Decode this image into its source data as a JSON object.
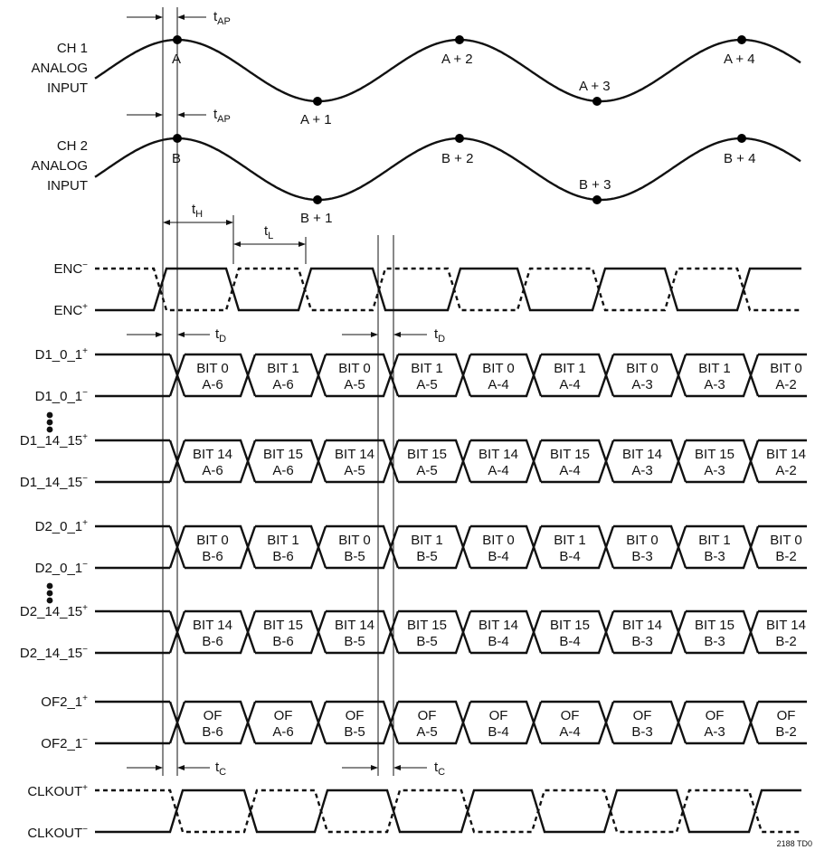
{
  "analog": [
    {
      "label_lines": [
        "CH 1",
        "ANALOG",
        "INPUT"
      ],
      "points": [
        "A",
        "A + 1",
        "A + 2",
        "A + 3",
        "A + 4"
      ],
      "timing": {
        "main": "t",
        "sub": "AP"
      }
    },
    {
      "label_lines": [
        "CH 2",
        "ANALOG",
        "INPUT"
      ],
      "points": [
        "B",
        "B + 1",
        "B + 2",
        "B + 3",
        "B + 4"
      ],
      "timing": {
        "main": "t",
        "sub": "AP"
      }
    }
  ],
  "timing": {
    "th": {
      "main": "t",
      "sub": "H"
    },
    "tl": {
      "main": "t",
      "sub": "L"
    },
    "td": {
      "main": "t",
      "sub": "D"
    },
    "tc": {
      "main": "t",
      "sub": "C"
    }
  },
  "enc": {
    "top": {
      "main": "ENC",
      "sup": "−"
    },
    "bottom": {
      "main": "ENC",
      "sup": "+"
    }
  },
  "buses": [
    {
      "top": {
        "main": "D1_0_1",
        "sup": "+"
      },
      "bottom": {
        "main": "D1_0_1",
        "sup": "−"
      },
      "cells": [
        [
          "BIT 0",
          "A-6"
        ],
        [
          "BIT 1",
          "A-6"
        ],
        [
          "BIT 0",
          "A-5"
        ],
        [
          "BIT 1",
          "A-5"
        ],
        [
          "BIT 0",
          "A-4"
        ],
        [
          "BIT 1",
          "A-4"
        ],
        [
          "BIT 0",
          "A-3"
        ],
        [
          "BIT 1",
          "A-3"
        ],
        [
          "BIT 0",
          "A-2"
        ]
      ]
    },
    {
      "top": {
        "main": "D1_14_15",
        "sup": "+"
      },
      "bottom": {
        "main": "D1_14_15",
        "sup": "−"
      },
      "cells": [
        [
          "BIT 14",
          "A-6"
        ],
        [
          "BIT 15",
          "A-6"
        ],
        [
          "BIT 14",
          "A-5"
        ],
        [
          "BIT 15",
          "A-5"
        ],
        [
          "BIT 14",
          "A-4"
        ],
        [
          "BIT 15",
          "A-4"
        ],
        [
          "BIT 14",
          "A-3"
        ],
        [
          "BIT 15",
          "A-3"
        ],
        [
          "BIT 14",
          "A-2"
        ]
      ]
    },
    {
      "top": {
        "main": "D2_0_1",
        "sup": "+"
      },
      "bottom": {
        "main": "D2_0_1",
        "sup": "−"
      },
      "cells": [
        [
          "BIT 0",
          "B-6"
        ],
        [
          "BIT 1",
          "B-6"
        ],
        [
          "BIT 0",
          "B-5"
        ],
        [
          "BIT 1",
          "B-5"
        ],
        [
          "BIT 0",
          "B-4"
        ],
        [
          "BIT 1",
          "B-4"
        ],
        [
          "BIT 0",
          "B-3"
        ],
        [
          "BIT 1",
          "B-3"
        ],
        [
          "BIT 0",
          "B-2"
        ]
      ]
    },
    {
      "top": {
        "main": "D2_14_15",
        "sup": "+"
      },
      "bottom": {
        "main": "D2_14_15",
        "sup": "−"
      },
      "cells": [
        [
          "BIT 14",
          "B-6"
        ],
        [
          "BIT 15",
          "B-6"
        ],
        [
          "BIT 14",
          "B-5"
        ],
        [
          "BIT 15",
          "B-5"
        ],
        [
          "BIT 14",
          "B-4"
        ],
        [
          "BIT 15",
          "B-4"
        ],
        [
          "BIT 14",
          "B-3"
        ],
        [
          "BIT 15",
          "B-3"
        ],
        [
          "BIT 14",
          "B-2"
        ]
      ]
    },
    {
      "top": {
        "main": "OF2_1",
        "sup": "+"
      },
      "bottom": {
        "main": "OF2_1",
        "sup": "−"
      },
      "cells": [
        [
          "OF",
          "B-6"
        ],
        [
          "OF",
          "A-6"
        ],
        [
          "OF",
          "B-5"
        ],
        [
          "OF",
          "A-5"
        ],
        [
          "OF",
          "B-4"
        ],
        [
          "OF",
          "A-4"
        ],
        [
          "OF",
          "B-3"
        ],
        [
          "OF",
          "A-3"
        ],
        [
          "OF",
          "B-2"
        ]
      ]
    }
  ],
  "clkout": {
    "top": {
      "main": "CLKOUT",
      "sup": "+"
    },
    "bottom": {
      "main": "CLKOUT",
      "sup": "−"
    }
  },
  "figure_ref": "2188 TD0"
}
